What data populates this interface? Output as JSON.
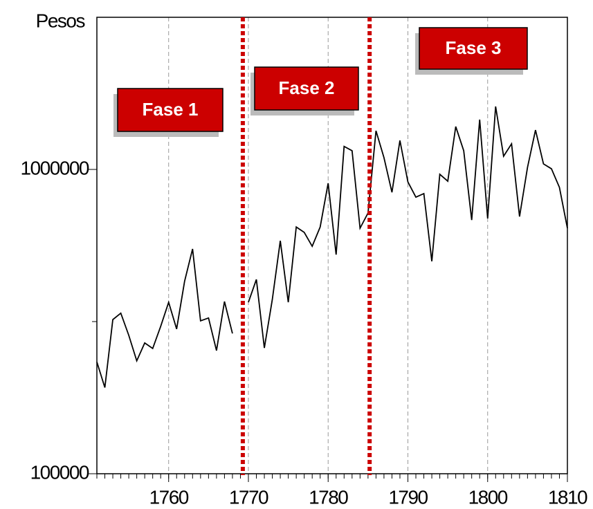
{
  "chart_data": {
    "type": "line",
    "y_label": "Pesos",
    "log_y": true,
    "xlim": [
      1751,
      1810
    ],
    "xticks": [
      1760,
      1770,
      1780,
      1790,
      1800,
      1810
    ],
    "ylim": [
      100000,
      3162278
    ],
    "yticks": [
      100000,
      1000000
    ],
    "yminor_ticks": [
      316228
    ],
    "grid": true,
    "x": [
      1751,
      1752,
      1753,
      1754,
      1755,
      1756,
      1757,
      1758,
      1759,
      1760,
      1761,
      1762,
      1763,
      1764,
      1765,
      1766,
      1767,
      1768,
      1769,
      1770,
      1771,
      1772,
      1773,
      1774,
      1775,
      1776,
      1777,
      1778,
      1779,
      1780,
      1781,
      1782,
      1783,
      1784,
      1785,
      1786,
      1787,
      1788,
      1789,
      1790,
      1791,
      1792,
      1793,
      1794,
      1795,
      1796,
      1797,
      1798,
      1799,
      1800,
      1801,
      1802,
      1803,
      1804,
      1805,
      1806,
      1807,
      1808,
      1809,
      1810
    ],
    "series": [
      {
        "name": "Pesos",
        "color": "#000000",
        "values": [
          233000,
          192000,
          321000,
          337000,
          285000,
          235000,
          269000,
          258000,
          305000,
          366000,
          299000,
          429000,
          548000,
          318000,
          325000,
          254000,
          368000,
          289000,
          null,
          366000,
          435000,
          259000,
          374000,
          583000,
          366000,
          647000,
          621000,
          559000,
          647000,
          901000,
          525000,
          1190000,
          1152000,
          641000,
          719000,
          1340000,
          1093000,
          841000,
          1245000,
          910000,
          811000,
          833000,
          499000,
          964000,
          915000,
          1383000,
          1152000,
          682000,
          1458000,
          690000,
          1610000,
          1105000,
          1214000,
          700000,
          1016000,
          1347000,
          1043000,
          1005000,
          873000,
          641000
        ]
      }
    ],
    "phase_lines": {
      "color": "#cc0000",
      "x": [
        1769.3,
        1785.2
      ]
    },
    "annotations": [
      "Fase 1",
      "Fase 2",
      "Fase 3"
    ]
  }
}
